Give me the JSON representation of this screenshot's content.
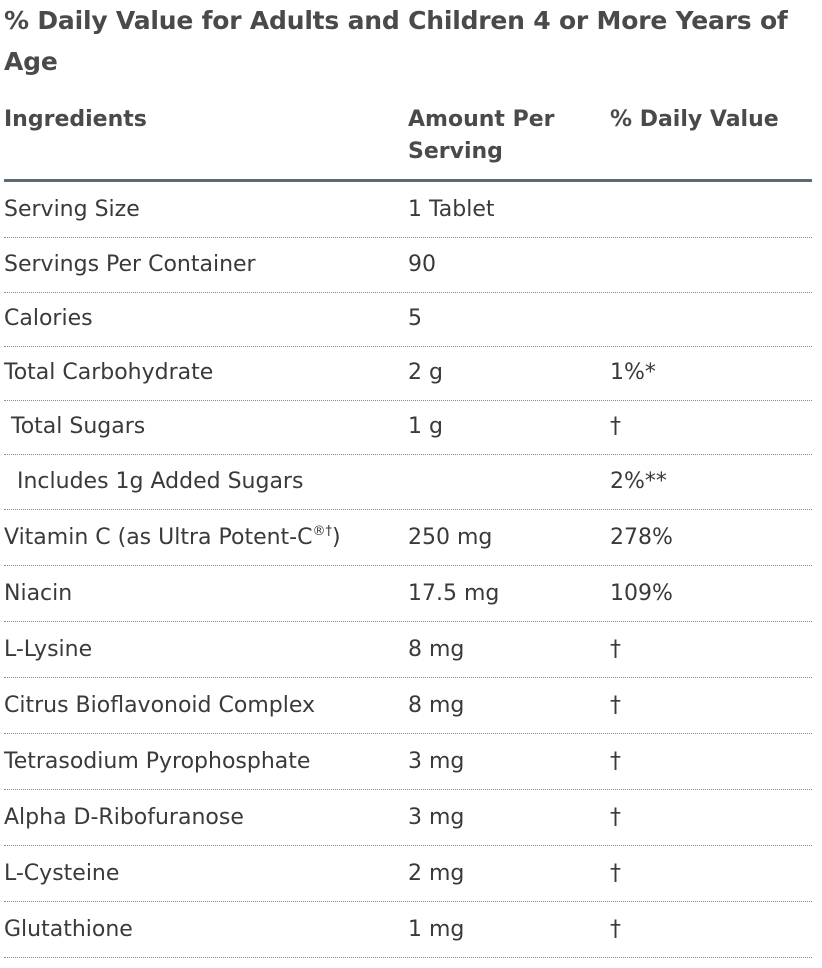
{
  "title": "% Daily Value for Adults and Children 4 or More Years of Age",
  "headers": {
    "ingredients": "Ingredients",
    "amount": "Amount Per Serving",
    "daily_value": "% Daily Value"
  },
  "rows": [
    {
      "name": "Serving Size",
      "amount": "1 Tablet",
      "dv": "",
      "indent": 0
    },
    {
      "name": "Servings Per Container",
      "amount": "90",
      "dv": "",
      "indent": 0
    },
    {
      "name": "Calories",
      "amount": "5",
      "dv": "",
      "indent": 0
    },
    {
      "name": "Total Carbohydrate",
      "amount": "2 g",
      "dv": "1%*",
      "indent": 0
    },
    {
      "name": "Total Sugars",
      "amount": "1 g",
      "dv": "†",
      "indent": 1
    },
    {
      "name": "Includes 1g Added Sugars",
      "amount": "",
      "dv": "2%**",
      "indent": 2
    },
    {
      "name": "Vitamin C (as Ultra Potent-C",
      "name_sup": "®†",
      "name_suffix": ")",
      "amount": "250 mg",
      "dv": "278%",
      "indent": 0
    },
    {
      "name": "Niacin",
      "amount": "17.5 mg",
      "dv": "109%",
      "indent": 0
    },
    {
      "name": "L-Lysine",
      "amount": "8 mg",
      "dv": "†",
      "indent": 0
    },
    {
      "name": "Citrus Bioflavonoid Complex",
      "amount": "8 mg",
      "dv": "†",
      "indent": 0
    },
    {
      "name": "Tetrasodium Pyrophosphate",
      "amount": "3 mg",
      "dv": "†",
      "indent": 0
    },
    {
      "name": "Alpha D-Ribofuranose",
      "amount": "3 mg",
      "dv": "†",
      "indent": 0
    },
    {
      "name": "L-Cysteine",
      "amount": "2 mg",
      "dv": "†",
      "indent": 0
    },
    {
      "name": "Glutathione",
      "amount": "1 mg",
      "dv": "†",
      "indent": 0
    }
  ]
}
